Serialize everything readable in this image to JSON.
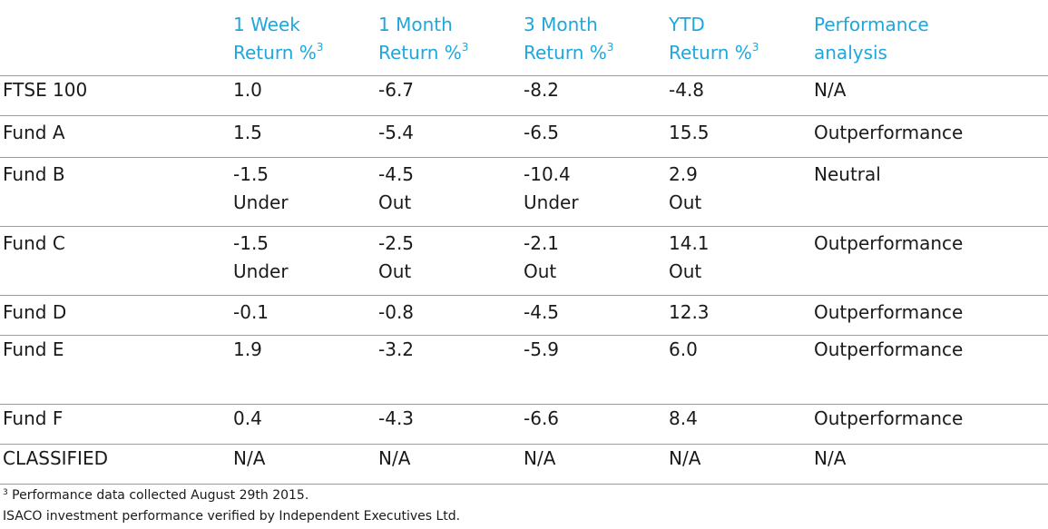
{
  "header": {
    "c0": "",
    "c1": {
      "line1": "1 Week",
      "line2": "Return %",
      "sup": "3"
    },
    "c2": {
      "line1": "1 Month",
      "line2": "Return %",
      "sup": "3"
    },
    "c3": {
      "line1": "3 Month",
      "line2": "Return %",
      "sup": "3"
    },
    "c4": {
      "line1": "YTD",
      "line2": "Return %",
      "sup": "3"
    },
    "c5": {
      "line1": "Performance",
      "line2": "analysis"
    }
  },
  "rows": [
    {
      "name": "FTSE 100",
      "week": [
        "1.0",
        ""
      ],
      "month": [
        "-6.7",
        ""
      ],
      "three": [
        "-8.2",
        ""
      ],
      "ytd": [
        "-4.8",
        ""
      ],
      "analysis": "N/A"
    },
    {
      "name": "Fund A",
      "week": [
        "1.5",
        ""
      ],
      "month": [
        "-5.4",
        ""
      ],
      "three": [
        "-6.5",
        ""
      ],
      "ytd": [
        "15.5",
        ""
      ],
      "analysis": "Outperformance"
    },
    {
      "name": "Fund B",
      "week": [
        "-1.5",
        "Under"
      ],
      "month": [
        "-4.5",
        "Out"
      ],
      "three": [
        "-10.4",
        "Under"
      ],
      "ytd": [
        "2.9",
        "Out"
      ],
      "analysis": "Neutral"
    },
    {
      "name": "Fund C",
      "week": [
        "-1.5",
        "Under"
      ],
      "month": [
        "-2.5",
        "Out"
      ],
      "three": [
        "-2.1",
        "Out"
      ],
      "ytd": [
        "14.1",
        "Out"
      ],
      "analysis": "Outperformance"
    },
    {
      "name": "Fund D",
      "week": [
        "-0.1",
        ""
      ],
      "month": [
        "-0.8",
        ""
      ],
      "three": [
        "-4.5",
        ""
      ],
      "ytd": [
        "12.3",
        ""
      ],
      "analysis": "Outperformance"
    },
    {
      "name": "Fund E",
      "week": [
        "1.9",
        ""
      ],
      "month": [
        "-3.2",
        ""
      ],
      "three": [
        "-5.9",
        ""
      ],
      "ytd": [
        "6.0",
        ""
      ],
      "analysis": "Outperformance"
    },
    {
      "name": "Fund F",
      "week": [
        "0.4",
        ""
      ],
      "month": [
        "-4.3",
        ""
      ],
      "three": [
        "-6.6",
        ""
      ],
      "ytd": [
        "8.4",
        ""
      ],
      "analysis": "Outperformance"
    },
    {
      "name": "CLASSIFIED",
      "week": [
        "N/A",
        ""
      ],
      "month": [
        "N/A",
        ""
      ],
      "three": [
        "N/A",
        ""
      ],
      "ytd": [
        "N/A",
        ""
      ],
      "analysis": "N/A"
    }
  ],
  "footnotes": {
    "sup": "3",
    "line1": " Performance data collected August 29th 2015.",
    "line2": "ISACO investment performance verified by Independent Executives Ltd."
  },
  "colors": {
    "header_text": "#1fa7dd",
    "body_text": "#1a1a1a",
    "rule": "#8fa0ad"
  }
}
